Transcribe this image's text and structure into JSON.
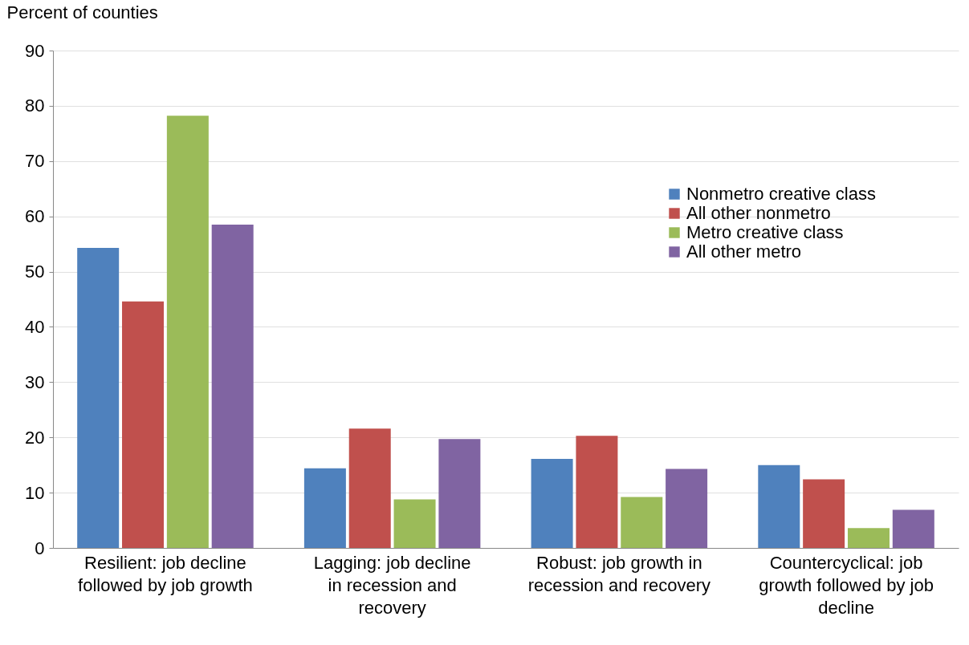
{
  "chart_data": {
    "type": "bar",
    "ylabel": "Percent of counties",
    "categories": [
      "Resilient: job decline followed by job growth",
      "Lagging: job decline in recession and recovery",
      "Robust: job growth in recession and recovery",
      "Countercyclical: job growth followed by job decline"
    ],
    "series": [
      {
        "name": "Nonmetro creative class",
        "color": "#4f81bd",
        "values": [
          54.3,
          14.4,
          16.1,
          15.0
        ]
      },
      {
        "name": "All other nonmetro",
        "color": "#c0504d",
        "values": [
          44.6,
          21.6,
          20.3,
          12.4
        ]
      },
      {
        "name": "Metro creative class",
        "color": "#9bbb59",
        "values": [
          78.2,
          8.8,
          9.2,
          3.6
        ]
      },
      {
        "name": "All other metro",
        "color": "#8064a2",
        "values": [
          58.5,
          19.7,
          14.3,
          6.9
        ]
      }
    ],
    "ylim": [
      0,
      90
    ],
    "yticks": [
      0,
      10,
      20,
      30,
      40,
      50,
      60,
      70,
      80,
      90
    ],
    "grid": "y",
    "legend": "top right"
  }
}
